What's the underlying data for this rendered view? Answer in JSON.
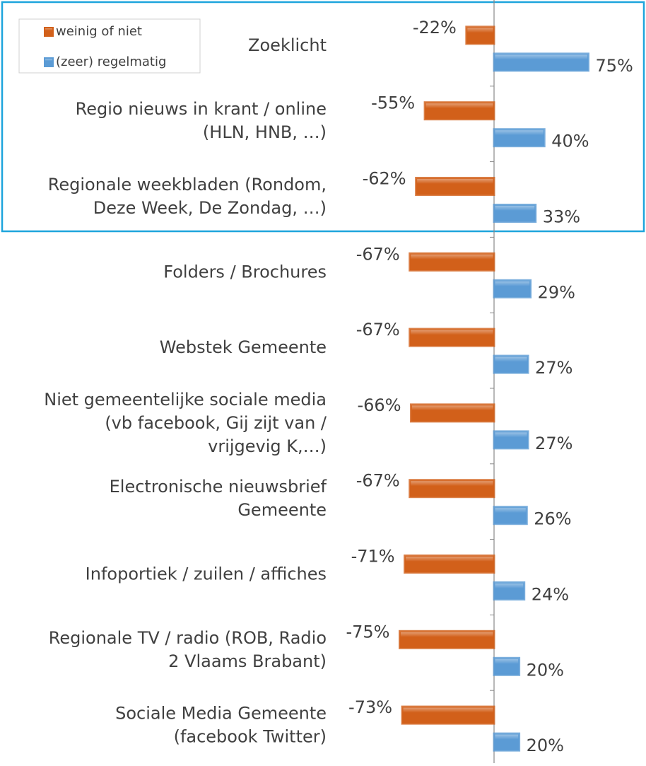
{
  "chart_data": {
    "type": "bar",
    "orientation": "horizontal",
    "categories": [
      [
        "Zoeklicht"
      ],
      [
        "Regio nieuws in krant / online",
        "(HLN, HNB, …)"
      ],
      [
        "Regionale weekbladen (Rondom,",
        "Deze Week, De Zondag, …)"
      ],
      [
        "Folders / Brochures"
      ],
      [
        "Webstek Gemeente"
      ],
      [
        "Niet gemeentelijke sociale media",
        "(vb facebook, Gij zijt van /",
        "vrijgevig K,…)"
      ],
      [
        "Electronische nieuwsbrief",
        "Gemeente"
      ],
      [
        "Infoportiek / zuilen / affiches"
      ],
      [
        "Regionale TV / radio (ROB, Radio",
        "2 Vlaams Brabant)"
      ],
      [
        "Sociale Media Gemeente",
        "(facebook Twitter)"
      ]
    ],
    "series": [
      {
        "name": "weinig of niet",
        "color": "#d2601a",
        "values": [
          -22,
          -55,
          -62,
          -67,
          -67,
          -66,
          -67,
          -71,
          -75,
          -73
        ],
        "value_labels": [
          "-22%",
          "-55%",
          "-62%",
          "-67%",
          "-67%",
          "-66%",
          "-67%",
          "-71%",
          "-75%",
          "-73%"
        ]
      },
      {
        "name": "(zeer) regelmatig",
        "color": "#5b9bd5",
        "values": [
          75,
          40,
          33,
          29,
          27,
          27,
          26,
          24,
          20,
          20
        ],
        "value_labels": [
          "75%",
          "40%",
          "33%",
          "29%",
          "27%",
          "27%",
          "26%",
          "24%",
          "20%",
          "20%"
        ]
      }
    ],
    "xlim": [
      -100,
      100
    ],
    "legend": "top-left"
  }
}
